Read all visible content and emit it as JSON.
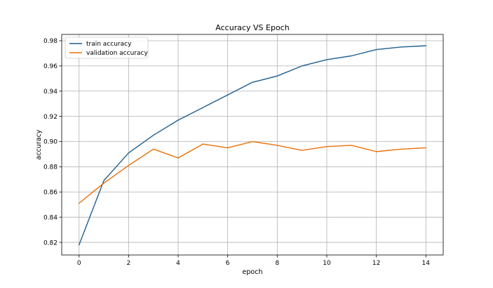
{
  "chart_data": {
    "type": "line",
    "title": "Accuracy VS Epoch",
    "xlabel": "epoch",
    "ylabel": "accuracy",
    "xlim": [
      -0.7,
      14.7
    ],
    "ylim": [
      0.81,
      0.985
    ],
    "xticks": [
      0,
      2,
      4,
      6,
      8,
      10,
      12,
      14
    ],
    "yticks": [
      0.82,
      0.84,
      0.86,
      0.88,
      0.9,
      0.92,
      0.94,
      0.96,
      0.98
    ],
    "ytick_labels": [
      "0.82",
      "0.84",
      "0.86",
      "0.88",
      "0.90",
      "0.92",
      "0.94",
      "0.96",
      "0.98"
    ],
    "grid": true,
    "legend_position": "top-left",
    "x": [
      0,
      1,
      2,
      3,
      4,
      5,
      6,
      7,
      8,
      9,
      10,
      11,
      12,
      13,
      14
    ],
    "series": [
      {
        "name": "train accuracy",
        "color": "#1f5f8f",
        "values": [
          0.818,
          0.869,
          0.891,
          0.905,
          0.917,
          0.927,
          0.937,
          0.947,
          0.952,
          0.96,
          0.965,
          0.968,
          0.973,
          0.975,
          0.976
        ]
      },
      {
        "name": "validation accuracy",
        "color": "#e8710a",
        "values": [
          0.851,
          0.867,
          0.881,
          0.894,
          0.887,
          0.898,
          0.895,
          0.9,
          0.897,
          0.893,
          0.896,
          0.897,
          0.892,
          0.894,
          0.895
        ]
      }
    ]
  }
}
